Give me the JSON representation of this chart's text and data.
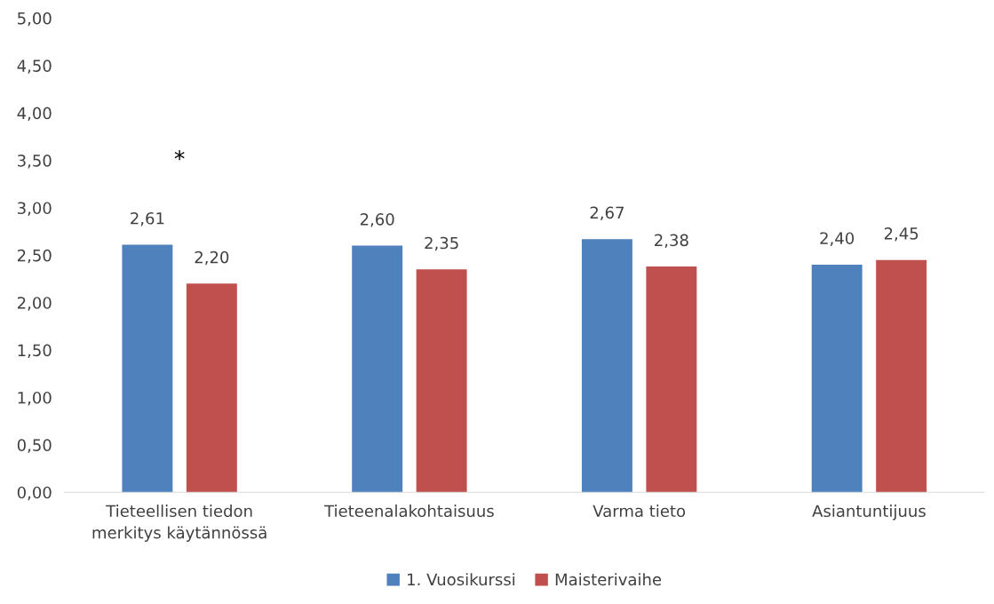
{
  "chart_data": {
    "type": "bar",
    "categories": [
      "Tieteellisen tiedon\nmerkitys käytännössä",
      "Tieteenalakohtaisuus",
      "Varma tieto",
      "Asiantuntijuus"
    ],
    "series": [
      {
        "name": "1. Vuosikurssi",
        "color": "#4f81bd",
        "values": [
          2.61,
          2.6,
          2.67,
          2.4
        ],
        "value_labels": [
          "2,61",
          "2,60",
          "2,67",
          "2,40"
        ]
      },
      {
        "name": "Maisterivaihe",
        "color": "#c0504d",
        "values": [
          2.2,
          2.35,
          2.38,
          2.45
        ],
        "value_labels": [
          "2,20",
          "2,35",
          "2,38",
          "2,45"
        ]
      }
    ],
    "ylim": [
      0,
      5
    ],
    "yticks": [
      {
        "value": 0,
        "label": "0,00"
      },
      {
        "value": 0.5,
        "label": "0,50"
      },
      {
        "value": 1,
        "label": "1,00"
      },
      {
        "value": 1.5,
        "label": "1,50"
      },
      {
        "value": 2,
        "label": "2,00"
      },
      {
        "value": 2.5,
        "label": "2,50"
      },
      {
        "value": 3,
        "label": "3,00"
      },
      {
        "value": 3.5,
        "label": "3,50"
      },
      {
        "value": 4,
        "label": "4,00"
      },
      {
        "value": 4.5,
        "label": "4,50"
      },
      {
        "value": 5,
        "label": "5,00"
      }
    ],
    "annotations": [
      "*"
    ],
    "grid": false,
    "legend": "bottom"
  }
}
